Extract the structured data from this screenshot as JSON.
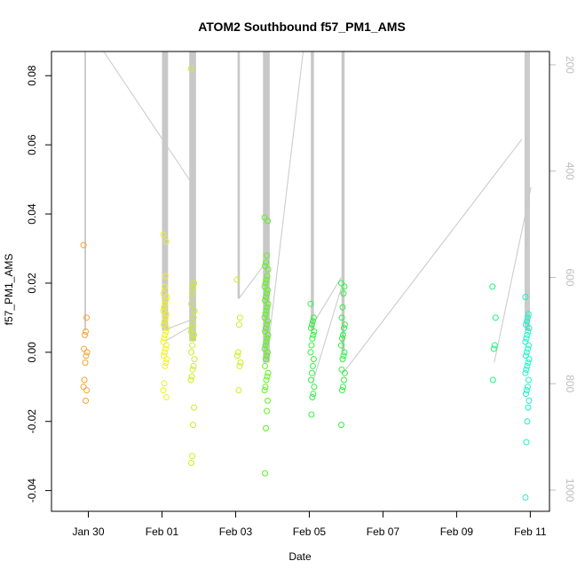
{
  "chart_data": {
    "type": "scatter",
    "title": "ATOM2 Southbound f57_PM1_AMS",
    "xlabel": "Date",
    "ylabel": "f57_PM1_AMS",
    "x_ticks": [
      "Jan 30",
      "Feb 01",
      "Feb 03",
      "Feb 05",
      "Feb 07",
      "Feb 09",
      "Feb 11"
    ],
    "y_ticks": [
      "-0.04",
      "-0.02",
      "0.00",
      "0.02",
      "0.04",
      "0.06",
      "0.08"
    ],
    "right_axis_ticks": [
      "200",
      "400",
      "600",
      "800",
      "1000"
    ],
    "xlim": [
      "Jan 29 00:00",
      "Feb 11 12:30"
    ],
    "ylim": [
      -0.046,
      0.087
    ],
    "right_axis_lim": [
      1040,
      175
    ],
    "right_axis_reversed": true,
    "marker": "open-circle",
    "grid": false,
    "legend": "none",
    "colors": {
      "orange": "#f5a330",
      "yellow": "#f0f020",
      "yellowgreen": "#c8f020",
      "green": "#60f020",
      "brightgreen": "#30f040",
      "springgreen": "#20f080",
      "cyan": "#20f0c8",
      "track_line": "#c8c8c8",
      "axis": "#000000",
      "right_axis_text": "#bdbdbd"
    },
    "clusters": [
      {
        "date": "Jan 29",
        "time_center": "22:00",
        "color": "orange",
        "values": [
          0.031,
          0.01,
          0.006,
          0.005,
          0.001,
          0.0,
          -0.001,
          -0.003,
          -0.008,
          -0.01,
          -0.011,
          -0.014
        ]
      },
      {
        "date": "Feb 01",
        "time_center": "02:00",
        "color": "yellow",
        "values": [
          0.034,
          0.032,
          0.022,
          0.019,
          0.017,
          0.016,
          0.015,
          0.014,
          0.013,
          0.012,
          0.011,
          0.01,
          0.009,
          0.008,
          0.007,
          0.006,
          0.005,
          0.004,
          0.003,
          0.002,
          0.001,
          0.0,
          -0.001,
          -0.002,
          -0.003,
          -0.004,
          -0.009,
          -0.011,
          -0.013
        ]
      },
      {
        "date": "Feb 01",
        "time_center": "20:00",
        "color": "yellowgreen",
        "values": [
          0.082,
          0.02,
          0.019,
          0.017,
          0.014,
          0.012,
          0.01,
          0.008,
          0.007,
          0.006,
          0.005,
          0.004,
          0.002,
          0.0,
          -0.002,
          -0.004,
          -0.005,
          -0.007,
          -0.008,
          -0.016,
          -0.021,
          -0.03,
          -0.032
        ]
      },
      {
        "date": "Feb 03",
        "time_center": "02:00",
        "color": "yellowgreen",
        "values": [
          0.021,
          0.01,
          0.008,
          0.0,
          -0.001,
          -0.003,
          -0.004,
          -0.011
        ]
      },
      {
        "date": "Feb 03",
        "time_center": "20:00",
        "color": "green",
        "values": [
          0.039,
          0.038,
          0.028,
          0.026,
          0.025,
          0.024,
          0.022,
          0.021,
          0.02,
          0.019,
          0.018,
          0.017,
          0.016,
          0.015,
          0.014,
          0.013,
          0.012,
          0.011,
          0.01,
          0.009,
          0.008,
          0.007,
          0.006,
          0.005,
          0.004,
          0.003,
          0.002,
          0.001,
          0.0,
          -0.001,
          -0.002,
          -0.004,
          -0.006,
          -0.007,
          -0.008,
          -0.01,
          -0.011,
          -0.014,
          -0.017,
          -0.022,
          -0.035
        ]
      },
      {
        "date": "Feb 05",
        "time_center": "02:00",
        "color": "brightgreen",
        "values": [
          0.014,
          0.01,
          0.009,
          0.008,
          0.007,
          0.006,
          0.005,
          0.004,
          0.002,
          0.0,
          -0.002,
          -0.004,
          -0.006,
          -0.008,
          -0.01,
          -0.012,
          -0.013,
          -0.018
        ]
      },
      {
        "date": "Feb 05",
        "time_center": "22:00",
        "color": "brightgreen",
        "values": [
          0.02,
          0.019,
          0.017,
          0.013,
          0.01,
          0.008,
          0.007,
          0.005,
          0.004,
          0.002,
          0.0,
          -0.001,
          -0.002,
          -0.005,
          -0.006,
          -0.008,
          -0.01,
          -0.011,
          -0.021
        ]
      },
      {
        "date": "Feb 10",
        "time_center": "00:30",
        "color": "springgreen",
        "values": [
          0.019,
          0.01,
          0.002,
          0.001,
          -0.008
        ]
      },
      {
        "date": "Feb 10",
        "time_center": "22:00",
        "color": "cyan",
        "values": [
          0.016,
          0.011,
          0.01,
          0.009,
          0.008,
          0.007,
          0.006,
          0.005,
          0.004,
          0.003,
          0.002,
          0.001,
          0.0,
          -0.001,
          -0.002,
          -0.003,
          -0.004,
          -0.005,
          -0.006,
          -0.008,
          -0.01,
          -0.011,
          -0.012,
          -0.014,
          -0.016,
          -0.02,
          -0.026,
          -0.042
        ]
      }
    ]
  }
}
